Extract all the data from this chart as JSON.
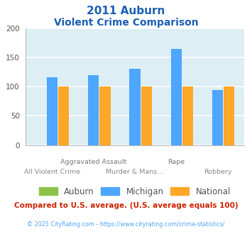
{
  "title_line1": "2011 Auburn",
  "title_line2": "Violent Crime Comparison",
  "auburn_values": [
    0,
    0,
    0,
    0,
    0
  ],
  "michigan_values": [
    116,
    120,
    131,
    164,
    94
  ],
  "national_values": [
    100,
    100,
    100,
    100,
    100
  ],
  "auburn_color": "#8bc34a",
  "michigan_color": "#4da6ff",
  "national_color": "#ffa726",
  "plot_bg": "#ddeef5",
  "ylim": [
    0,
    200
  ],
  "yticks": [
    0,
    50,
    100,
    150,
    200
  ],
  "title_color": "#1a5fb4",
  "top_labels": [
    "",
    "Aggravated Assault",
    "",
    "Rape",
    ""
  ],
  "bot_labels": [
    "All Violent Crime",
    "",
    "Murder & Mans...",
    "",
    "Robbery"
  ],
  "footer1": "Compared to U.S. average. (U.S. average equals 100)",
  "footer2": "© 2025 CityRating.com - https://www.cityrating.com/crime-statistics/",
  "footer1_color": "#cc2200",
  "footer2_color": "#4da6ff",
  "grid_color": "#ffffff",
  "legend_labels": [
    "Auburn",
    "Michigan",
    "National"
  ],
  "legend_text_color": "#555555",
  "bar_width": 0.26
}
